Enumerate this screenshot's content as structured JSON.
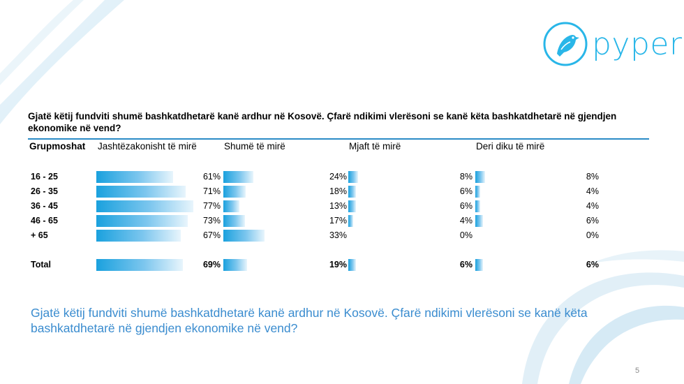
{
  "brand": {
    "name": "pyper",
    "accent": "#29b6e8"
  },
  "question": "Gjatë këtij fundviti shumë bashkatdhetarë kanë ardhur në Kosovë. Çfarë ndikimi vlerësoni se kanë këta bashkatdhetarë në gjendjen ekonomike në vend?",
  "subtitle": "Gjatë këtij fundviti shumë bashkatdhetarë kanë ardhur në Kosovë. Çfarë ndikimi vlerësoni se kanë këta bashkatdhetarë në gjendjen ekonomike në vend?",
  "page_number": "5",
  "chart_data": {
    "type": "bar",
    "group_header": "Grupmoshat",
    "series_headers": [
      "Jashtëzakonisht të mirë",
      "Shumë të mirë",
      "Mjaft të mirë",
      "Deri diku të mirë"
    ],
    "categories": [
      "16 - 25",
      "26 - 35",
      "36 - 45",
      "46 - 65",
      "+ 65"
    ],
    "series": [
      {
        "name": "Jashtëzakonisht të mirë",
        "values": [
          61,
          71,
          77,
          73,
          67
        ],
        "labels": [
          "61%",
          "71%",
          "77%",
          "73%",
          "67%"
        ]
      },
      {
        "name": "Shumë të mirë",
        "values": [
          24,
          18,
          13,
          17,
          33
        ],
        "labels": [
          "24%",
          "18%",
          "13%",
          "17%",
          "33%"
        ]
      },
      {
        "name": "Mjaft të mirë",
        "values": [
          8,
          6,
          6,
          4,
          0
        ],
        "labels": [
          "8%",
          "6%",
          "6%",
          "4%",
          "0%"
        ]
      },
      {
        "name": "Deri diku të mirë",
        "values": [
          8,
          4,
          4,
          6,
          0
        ],
        "labels": [
          "8%",
          "4%",
          "4%",
          "6%",
          "0%"
        ]
      }
    ],
    "total": {
      "label": "Total",
      "values": [
        69,
        19,
        6,
        6
      ],
      "labels": [
        "69%",
        "19%",
        "6%",
        "6%"
      ]
    },
    "bar_color": "#1aa1de"
  }
}
